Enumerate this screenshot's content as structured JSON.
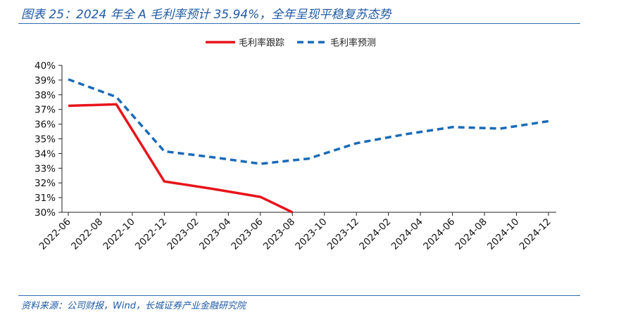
{
  "figure": {
    "title": "图表 25：2024 年全 A 毛利率预计 35.94%，全年呈现平稳复苏态势",
    "source": "资料来源：公司财报，Wind，长城证券产业金融研究院"
  },
  "chart_data": {
    "type": "line",
    "title": "",
    "xlabel": "",
    "ylabel": "",
    "x": [
      "2022-06",
      "2022-08",
      "2022-10",
      "2022-12",
      "2023-02",
      "2023-04",
      "2023-06",
      "2023-08",
      "2023-10",
      "2023-12",
      "2024-02",
      "2024-04",
      "2024-06",
      "2024-08",
      "2024-10",
      "2024-12"
    ],
    "ylim": [
      30,
      40
    ],
    "y_ticks": [
      "30%",
      "31%",
      "32%",
      "33%",
      "34%",
      "35%",
      "36%",
      "37%",
      "38%",
      "39%",
      "40%"
    ],
    "grid": false,
    "legend_position": "top",
    "series": [
      {
        "name": "毛利率跟踪",
        "color": "#e8141b",
        "style": "solid",
        "points": [
          {
            "x": "2022-06",
            "y": 37.25
          },
          {
            "x": "2022-09",
            "y": 37.35
          },
          {
            "x": "2022-12",
            "y": 32.1
          },
          {
            "x": "2023-03",
            "y": 31.6
          },
          {
            "x": "2023-06",
            "y": 31.05
          },
          {
            "x": "2023-08",
            "y": 30.0
          }
        ]
      },
      {
        "name": "毛利率预测",
        "color": "#1a6bb8",
        "style": "dashed",
        "points": [
          {
            "x": "2022-06",
            "y": 39.05
          },
          {
            "x": "2022-09",
            "y": 37.85
          },
          {
            "x": "2022-12",
            "y": 34.15
          },
          {
            "x": "2023-03",
            "y": 33.75
          },
          {
            "x": "2023-06",
            "y": 33.3
          },
          {
            "x": "2023-09",
            "y": 33.65
          },
          {
            "x": "2023-12",
            "y": 34.7
          },
          {
            "x": "2024-03",
            "y": 35.3
          },
          {
            "x": "2024-06",
            "y": 35.8
          },
          {
            "x": "2024-09",
            "y": 35.7
          },
          {
            "x": "2024-12",
            "y": 36.2
          }
        ]
      }
    ]
  }
}
